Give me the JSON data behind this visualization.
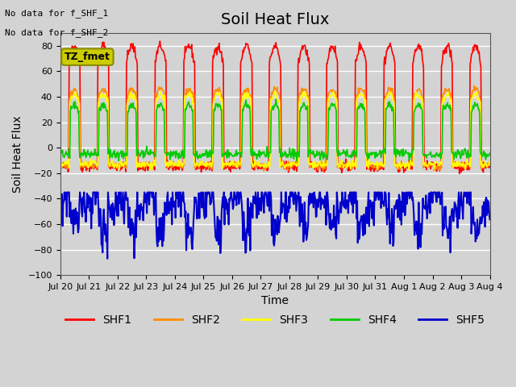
{
  "title": "Soil Heat Flux",
  "ylabel": "Soil Heat Flux",
  "xlabel": "Time",
  "ylim": [
    -100,
    90
  ],
  "yticks": [
    -100,
    -80,
    -60,
    -40,
    -20,
    0,
    20,
    40,
    60,
    80
  ],
  "series_colors": {
    "SHF1": "#FF0000",
    "SHF2": "#FF8C00",
    "SHF3": "#FFFF00",
    "SHF4": "#00CC00",
    "SHF5": "#0000CC"
  },
  "series_linewidths": {
    "SHF1": 1.2,
    "SHF2": 1.2,
    "SHF3": 1.2,
    "SHF4": 1.2,
    "SHF5": 1.5
  },
  "no_data_text": [
    "No data for f_SHF_1",
    "No data for f_SHF_2"
  ],
  "annotation_text": "TZ_fmet",
  "annotation_color": "#CCCC00",
  "annotation_border": "#8B8B00",
  "background_color": "#D3D3D3",
  "x_tick_labels": [
    "Jul 20",
    "Jul 21",
    "Jul 22",
    "Jul 23",
    "Jul 24",
    "Jul 25",
    "Jul 26",
    "Jul 27",
    "Jul 28",
    "Jul 29",
    "Jul 30",
    "Jul 31",
    "Aug 1",
    "Aug 2",
    "Aug 3",
    "Aug 4"
  ],
  "n_days": 15,
  "points_per_day": 48,
  "title_fontsize": 14,
  "tick_fontsize": 8,
  "label_fontsize": 10,
  "legend_fontsize": 10,
  "grid_color": "#FFFFFF",
  "grid_alpha": 1.0
}
